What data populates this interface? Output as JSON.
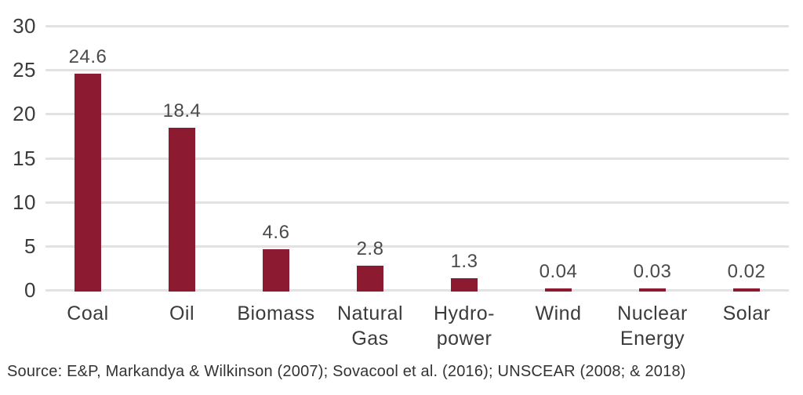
{
  "chart_data": {
    "type": "bar",
    "title": "",
    "categories": [
      "Coal",
      "Oil",
      "Biomass",
      "Natural Gas",
      "Hydro-power",
      "Wind",
      "Nuclear Energy",
      "Solar"
    ],
    "category_label_lines": [
      [
        "Coal"
      ],
      [
        "Oil"
      ],
      [
        "Biomass"
      ],
      [
        "Natural",
        "Gas"
      ],
      [
        "Hydro-",
        "power"
      ],
      [
        "Wind"
      ],
      [
        "Nuclear",
        "Energy"
      ],
      [
        "Solar"
      ]
    ],
    "values": [
      24.6,
      18.4,
      4.6,
      2.8,
      1.3,
      0.04,
      0.03,
      0.02
    ],
    "value_labels": [
      "24.6",
      "18.4",
      "4.6",
      "2.8",
      "1.3",
      "0.04",
      "0.03",
      "0.02"
    ],
    "ylim": [
      0,
      30
    ],
    "yticks": [
      0,
      5,
      10,
      15,
      20,
      25,
      30
    ],
    "xlabel": "",
    "ylabel": "",
    "grid": true,
    "legend_position": "none",
    "bar_color": "#8C1B31",
    "grid_color": "#E4E2E0",
    "axis_text_color": "#3B3B3B",
    "value_label_color": "#4A4A4A"
  },
  "source": {
    "text": "Source: E&P, Markandya & Wilkinson (2007); Sovacool et al. (2016); UNSCEAR (2008; & 2018)"
  }
}
